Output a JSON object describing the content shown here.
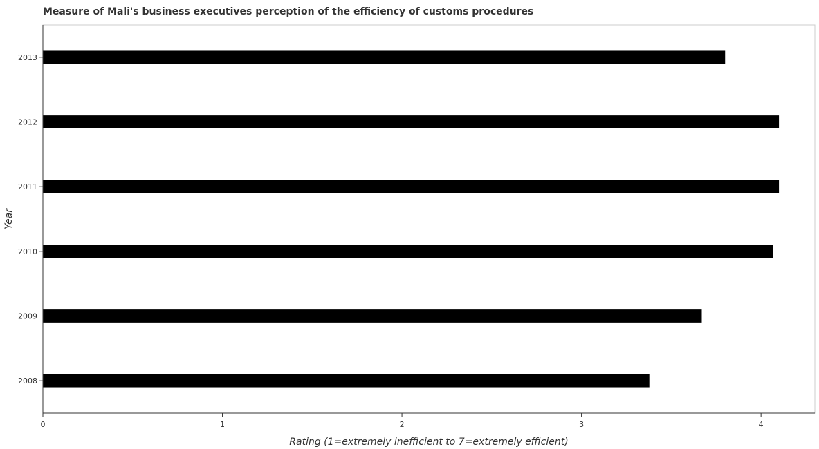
{
  "chart_data": {
    "type": "bar",
    "orientation": "horizontal",
    "title": "Measure of Mali's business executives perception of the efficiency of customs procedures",
    "xlabel": "Rating (1=extremely inefficient to 7=extremely efficient)",
    "ylabel": "Year",
    "categories": [
      "2008",
      "2009",
      "2010",
      "2011",
      "2012",
      "2013"
    ],
    "values": [
      3.378,
      3.67,
      4.066,
      4.1,
      4.1,
      3.8
    ],
    "xlim": [
      0,
      4.3
    ],
    "xticks": [
      "0",
      "1",
      "2",
      "3",
      "4"
    ],
    "bar_color": "#000000",
    "grid": false
  }
}
